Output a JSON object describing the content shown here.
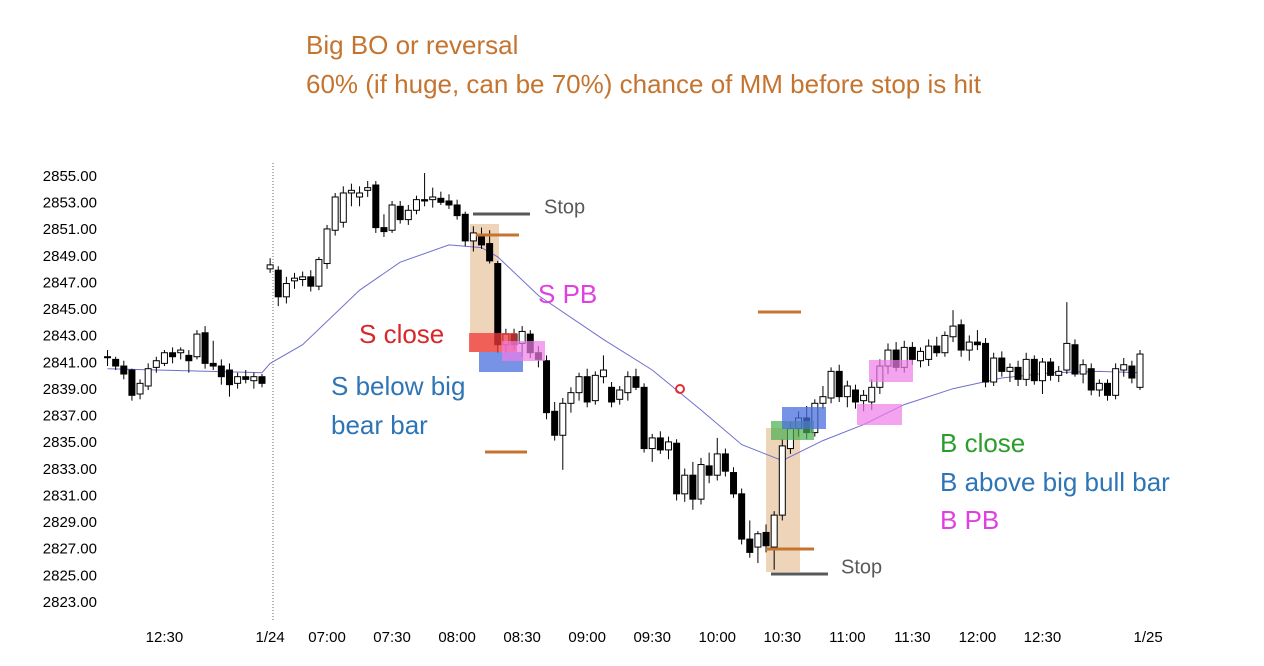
{
  "chart_data": {
    "type": "candlestick",
    "title_lines": [
      "Big BO or reversal",
      "60% (if huge, can be 70%) chance of MM before stop is hit"
    ],
    "title_color": "#c5742f",
    "up_color": "#ffffff",
    "down_color": "#000000",
    "outline_color": "#000000",
    "xlim": [
      -1,
      130
    ],
    "xticks": [
      {
        "value": 7,
        "label": "12:30"
      },
      {
        "value": 20,
        "label": "1/24"
      },
      {
        "value": 27,
        "label": "07:00"
      },
      {
        "value": 35,
        "label": "07:30"
      },
      {
        "value": 43,
        "label": "08:00"
      },
      {
        "value": 51,
        "label": "08:30"
      },
      {
        "value": 59,
        "label": "09:00"
      },
      {
        "value": 67,
        "label": "09:30"
      },
      {
        "value": 75,
        "label": "10:00"
      },
      {
        "value": 83,
        "label": "10:30"
      },
      {
        "value": 91,
        "label": "11:00"
      },
      {
        "value": 99,
        "label": "11:30"
      },
      {
        "value": 107,
        "label": "12:00"
      },
      {
        "value": 115,
        "label": "12:30"
      },
      {
        "value": 128,
        "label": "1/25"
      }
    ],
    "ylim": [
      2822,
      2856
    ],
    "yticks": [
      {
        "value": 2855,
        "label": "2855.00"
      },
      {
        "value": 2853,
        "label": "2853.00"
      },
      {
        "value": 2851,
        "label": "2851.00"
      },
      {
        "value": 2849,
        "label": "2849.00"
      },
      {
        "value": 2847,
        "label": "2847.00"
      },
      {
        "value": 2845,
        "label": "2845.00"
      },
      {
        "value": 2843,
        "label": "2843.00"
      },
      {
        "value": 2841,
        "label": "2841.00"
      },
      {
        "value": 2839,
        "label": "2839.00"
      },
      {
        "value": 2837,
        "label": "2837.00"
      },
      {
        "value": 2835,
        "label": "2835.00"
      },
      {
        "value": 2833,
        "label": "2833.00"
      },
      {
        "value": 2831,
        "label": "2831.00"
      },
      {
        "value": 2829,
        "label": "2829.00"
      },
      {
        "value": 2827,
        "label": "2827.00"
      },
      {
        "value": 2825,
        "label": "2825.00"
      },
      {
        "value": 2823,
        "label": "2823.00"
      }
    ],
    "grid": false,
    "ohlc": [
      [
        2841.5,
        2842,
        2840.8,
        2841.5
      ],
      [
        2841.3,
        2841.5,
        2840.5,
        2840.8
      ],
      [
        2840.8,
        2841.2,
        2839.8,
        2840.2
      ],
      [
        2840.5,
        2840.6,
        2838.2,
        2838.6
      ],
      [
        2838.7,
        2839.8,
        2838.3,
        2839.5
      ],
      [
        2839.3,
        2841,
        2839,
        2840.6
      ],
      [
        2840.7,
        2841.5,
        2840.3,
        2841.2
      ],
      [
        2841,
        2842,
        2840.8,
        2841.8
      ],
      [
        2841.8,
        2842.2,
        2841,
        2841.5
      ],
      [
        2841.8,
        2842.2,
        2841.3,
        2842
      ],
      [
        2841.6,
        2842,
        2840.3,
        2841.2
      ],
      [
        2841.5,
        2843.5,
        2841.3,
        2843.2
      ],
      [
        2843.3,
        2843.8,
        2840.6,
        2841
      ],
      [
        2841,
        2842.7,
        2840.5,
        2840.8
      ],
      [
        2840.8,
        2841.3,
        2839.4,
        2840
      ],
      [
        2840.5,
        2841,
        2838.5,
        2839.4
      ],
      [
        2839.5,
        2840.3,
        2839.1,
        2840
      ],
      [
        2840,
        2840.5,
        2839.5,
        2839.8
      ],
      [
        2839.7,
        2840.3,
        2839.1,
        2840
      ],
      [
        2840,
        2840.2,
        2839.2,
        2839.5
      ],
      [
        2848.1,
        2848.9,
        2847.8,
        2848.4
      ],
      [
        2848,
        2848.3,
        2845.3,
        2846
      ],
      [
        2846,
        2847.5,
        2845.5,
        2847
      ],
      [
        2847.2,
        2847.8,
        2846.6,
        2847.4
      ],
      [
        2847.3,
        2847.9,
        2846.8,
        2847.5
      ],
      [
        2847.5,
        2848,
        2846.4,
        2846.8
      ],
      [
        2846.8,
        2849,
        2846.5,
        2848.8
      ],
      [
        2848.5,
        2851.4,
        2848.1,
        2851.1
      ],
      [
        2851,
        2853.8,
        2850.6,
        2853.5
      ],
      [
        2851.6,
        2854.3,
        2851.2,
        2853.8
      ],
      [
        2853.8,
        2854.5,
        2852.8,
        2854
      ],
      [
        2853.5,
        2854.3,
        2852.8,
        2853.8
      ],
      [
        2854,
        2854.7,
        2853.5,
        2854.2
      ],
      [
        2854.4,
        2854.7,
        2850.8,
        2851.2
      ],
      [
        2851.2,
        2852.2,
        2850.5,
        2850.9
      ],
      [
        2851,
        2853.2,
        2850.8,
        2852.9
      ],
      [
        2852.8,
        2853.2,
        2851.5,
        2851.8
      ],
      [
        2851.8,
        2852.9,
        2851.4,
        2852.5
      ],
      [
        2852.5,
        2853.6,
        2852.2,
        2853.3
      ],
      [
        2853.3,
        2855.3,
        2852.8,
        2853.2
      ],
      [
        2853.3,
        2854.2,
        2852.7,
        2853.5
      ],
      [
        2853.4,
        2853.9,
        2852.9,
        2853.1
      ],
      [
        2853.2,
        2853.7,
        2852.6,
        2852.9
      ],
      [
        2852.9,
        2853.3,
        2851.8,
        2852.1
      ],
      [
        2852.2,
        2852.4,
        2849.8,
        2850.2
      ],
      [
        2850.2,
        2851.3,
        2849.4,
        2850.8
      ],
      [
        2850.6,
        2851.2,
        2849.6,
        2849.9
      ],
      [
        2850,
        2851,
        2848.5,
        2848.7
      ],
      [
        2848.5,
        2848.7,
        2841.8,
        2842.4
      ],
      [
        2842.4,
        2843.6,
        2841.8,
        2843.2
      ],
      [
        2843.2,
        2843.6,
        2842,
        2842.4
      ],
      [
        2842.5,
        2843.8,
        2841.5,
        2843.4
      ],
      [
        2843.2,
        2843.5,
        2841.4,
        2841.8
      ],
      [
        2841.8,
        2842.3,
        2840.7,
        2841.3
      ],
      [
        2841.2,
        2841.6,
        2836.8,
        2837.3
      ],
      [
        2837.4,
        2838.1,
        2835.2,
        2835.6
      ],
      [
        2835.6,
        2838.4,
        2833,
        2838
      ],
      [
        2838,
        2839.2,
        2837.3,
        2838.8
      ],
      [
        2838.8,
        2840.3,
        2838.2,
        2840
      ],
      [
        2840,
        2840.6,
        2837.7,
        2838.1
      ],
      [
        2838.2,
        2840.4,
        2837.9,
        2840.1
      ],
      [
        2840,
        2841.6,
        2839.5,
        2840.5
      ],
      [
        2839.2,
        2839.6,
        2837.7,
        2838.1
      ],
      [
        2838.3,
        2839.3,
        2837.9,
        2839
      ],
      [
        2838.8,
        2840.4,
        2838.2,
        2840
      ],
      [
        2840,
        2840.6,
        2839,
        2839.2
      ],
      [
        2839.2,
        2839.5,
        2834.3,
        2834.6
      ],
      [
        2834.6,
        2835.7,
        2833.6,
        2835.4
      ],
      [
        2835.4,
        2835.9,
        2834.2,
        2834.5
      ],
      [
        2834.5,
        2835.5,
        2833.8,
        2835.1
      ],
      [
        2835,
        2835.3,
        2830.7,
        2831.2
      ],
      [
        2831.2,
        2833.1,
        2830.6,
        2832.6
      ],
      [
        2832.6,
        2833.6,
        2830,
        2830.8
      ],
      [
        2830.8,
        2833.9,
        2830.4,
        2833.4
      ],
      [
        2833.3,
        2834.3,
        2832,
        2832.6
      ],
      [
        2832.6,
        2835.4,
        2832.2,
        2834.2
      ],
      [
        2834.2,
        2834.6,
        2832.5,
        2832.9
      ],
      [
        2832.8,
        2833.2,
        2830.9,
        2831.2
      ],
      [
        2831.2,
        2831.6,
        2827.4,
        2827.8
      ],
      [
        2827.8,
        2829.2,
        2826.4,
        2826.8
      ],
      [
        2827.2,
        2828.4,
        2826,
        2828.2
      ],
      [
        2828.3,
        2828.9,
        2826.8,
        2827.3
      ],
      [
        2827.2,
        2829.9,
        2825.5,
        2829.6
      ],
      [
        2829.6,
        2835.3,
        2829.2,
        2834.8
      ],
      [
        2834.6,
        2836.6,
        2834.2,
        2836.1
      ],
      [
        2836.1,
        2837.4,
        2835.5,
        2836.9
      ],
      [
        2836.9,
        2837.8,
        2835.3,
        2835.8
      ],
      [
        2835.8,
        2838.3,
        2835.5,
        2838
      ],
      [
        2838,
        2839.3,
        2837.6,
        2838.5
      ],
      [
        2838.4,
        2840.7,
        2838,
        2840.4
      ],
      [
        2840.4,
        2840.9,
        2838.1,
        2838.5
      ],
      [
        2838.5,
        2839.7,
        2837.7,
        2839.3
      ],
      [
        2839,
        2839.4,
        2837.6,
        2838.1
      ],
      [
        2838.2,
        2839,
        2837.4,
        2838.6
      ],
      [
        2838.1,
        2839.8,
        2837.5,
        2839.2
      ],
      [
        2839.2,
        2841.3,
        2838.7,
        2840.8
      ],
      [
        2840.8,
        2842.5,
        2840.2,
        2842
      ],
      [
        2842,
        2842.6,
        2840.4,
        2840.7
      ],
      [
        2840.7,
        2842.7,
        2840.3,
        2842.2
      ],
      [
        2842.2,
        2842.6,
        2840.9,
        2841.3
      ],
      [
        2841.2,
        2842.2,
        2840.7,
        2841.9
      ],
      [
        2841.3,
        2842.8,
        2840.8,
        2842.3
      ],
      [
        2842.3,
        2843,
        2841.5,
        2841.8
      ],
      [
        2841.8,
        2843.4,
        2841.5,
        2843.1
      ],
      [
        2843,
        2845,
        2842.6,
        2843.8
      ],
      [
        2843.9,
        2844.3,
        2841.5,
        2842
      ],
      [
        2842,
        2843.1,
        2841.2,
        2842.6
      ],
      [
        2842.6,
        2843.5,
        2842,
        2842.4
      ],
      [
        2842.5,
        2842.9,
        2839.2,
        2839.6
      ],
      [
        2839.6,
        2841.8,
        2839.3,
        2841.4
      ],
      [
        2841.4,
        2841.9,
        2840,
        2840.4
      ],
      [
        2840.4,
        2841,
        2839.6,
        2840.7
      ],
      [
        2840.7,
        2841.2,
        2839.3,
        2839.8
      ],
      [
        2839.8,
        2841.8,
        2839.3,
        2841.3
      ],
      [
        2841.3,
        2841.6,
        2839.4,
        2839.7
      ],
      [
        2839.7,
        2841.4,
        2838.7,
        2841.1
      ],
      [
        2841.1,
        2841.4,
        2839.7,
        2840.1
      ],
      [
        2840.1,
        2840.8,
        2839.6,
        2840.4
      ],
      [
        2840.5,
        2845.6,
        2840.2,
        2842.5
      ],
      [
        2842.4,
        2842.8,
        2840,
        2840.2
      ],
      [
        2840.2,
        2841.3,
        2839.5,
        2840.9
      ],
      [
        2840.6,
        2841,
        2838.6,
        2839
      ],
      [
        2839,
        2839.8,
        2838.5,
        2839.5
      ],
      [
        2839.5,
        2839.8,
        2838.2,
        2838.6
      ],
      [
        2838.6,
        2841,
        2838.3,
        2840.6
      ],
      [
        2840.5,
        2841.4,
        2840,
        2840.9
      ],
      [
        2840.8,
        2841.2,
        2839.5,
        2839.9
      ],
      [
        2839.2,
        2842,
        2839,
        2841.7
      ]
    ],
    "ema": {
      "color": "#6f6fd0",
      "x": [
        0,
        19,
        20,
        24,
        31,
        36,
        42,
        46,
        48,
        53,
        61,
        67,
        73,
        78,
        83,
        88,
        93,
        98,
        104,
        110,
        116,
        122,
        127
      ],
      "values": [
        2840.6,
        2840.3,
        2841,
        2842.4,
        2846.5,
        2848.6,
        2849.9,
        2849.7,
        2849,
        2846.1,
        2842.8,
        2840.5,
        2837.5,
        2834.9,
        2833.7,
        2835.2,
        2836.4,
        2837.9,
        2839.1,
        2839.9,
        2840.3,
        2840.4,
        2840.3
      ]
    },
    "annotations": [
      {
        "text": "Stop",
        "color": "#595959"
      },
      {
        "text": "Stop",
        "color": "#595959"
      },
      {
        "text": "S close",
        "color": "#d9262b"
      },
      {
        "text": "S below big",
        "color": "#2e75b6"
      },
      {
        "text": "bear bar",
        "color": "#2e75b6"
      },
      {
        "text": "S PB",
        "color": "#e040e0"
      },
      {
        "text": "B close",
        "color": "#2a9d2a"
      },
      {
        "text": "B above big bull bar",
        "color": "#2e75b6"
      },
      {
        "text": "B PB",
        "color": "#e040e0"
      }
    ]
  }
}
